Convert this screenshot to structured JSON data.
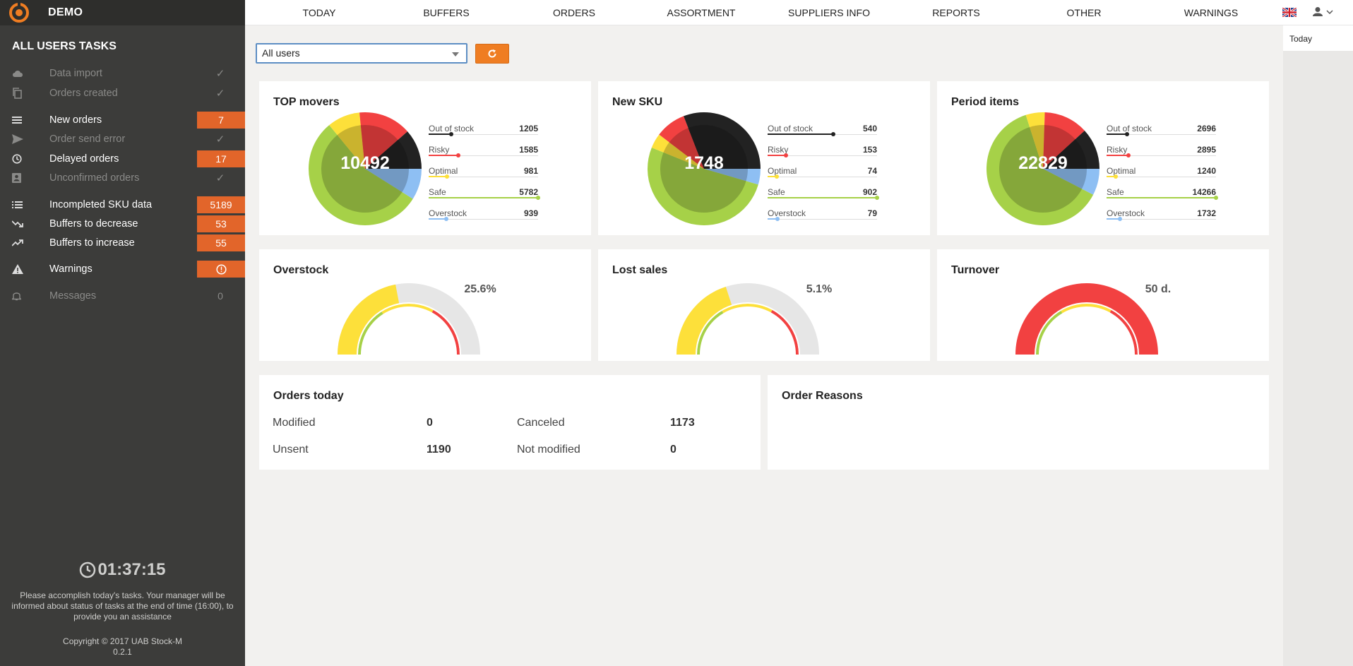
{
  "app": {
    "name": "DEMO"
  },
  "nav": {
    "items": [
      "TODAY",
      "BUFFERS",
      "ORDERS",
      "ASSORTMENT",
      "SUPPLIERS INFO",
      "REPORTS",
      "OTHER",
      "WARNINGS"
    ]
  },
  "sidebar": {
    "title": "ALL USERS TASKS",
    "tasks": [
      {
        "label": "Data import",
        "icon": "cloud-upload-icon",
        "status": "done"
      },
      {
        "label": "Orders created",
        "icon": "copy-icon",
        "status": "done"
      },
      {
        "label": "New orders",
        "icon": "list-icon",
        "count": "7"
      },
      {
        "label": "Order send error",
        "icon": "send-icon",
        "status": "done"
      },
      {
        "label": "Delayed orders",
        "icon": "clock-icon",
        "count": "17"
      },
      {
        "label": "Unconfirmed orders",
        "icon": "contact-icon",
        "status": "done"
      },
      {
        "label": "Incompleted SKU data",
        "icon": "bullet-list-icon",
        "count": "5189"
      },
      {
        "label": "Buffers to decrease",
        "icon": "trend-down-icon",
        "count": "53"
      },
      {
        "label": "Buffers to increase",
        "icon": "trend-up-icon",
        "count": "55"
      },
      {
        "label": "Warnings",
        "icon": "warning-icon",
        "count": "!"
      },
      {
        "label": "Messages",
        "icon": "bell-icon",
        "count": "0"
      }
    ],
    "timer": "01:37:15",
    "notice": "Please accomplish today's tasks. Your manager will be informed about status of tasks at the end of time (16:00), to provide you an assistance",
    "copyright": "Copyright © 2017 UAB Stock-M",
    "version": "0.2.1"
  },
  "today_panel": {
    "label": "Today"
  },
  "filter": {
    "user_select": "All users"
  },
  "colors": {
    "black": "#222222",
    "red": "#f24141",
    "yellow": "#fde03a",
    "green": "#a6d148",
    "blue": "#8ebff3",
    "accent": "#ef7d22",
    "badge": "#e2652a"
  },
  "donut_cards": [
    {
      "title": "TOP movers",
      "total": "10492",
      "legend": [
        {
          "name": "Out of stock",
          "value": "1205"
        },
        {
          "name": "Risky",
          "value": "1585"
        },
        {
          "name": "Optimal",
          "value": "981"
        },
        {
          "name": "Safe",
          "value": "5782"
        },
        {
          "name": "Overstock",
          "value": "939"
        }
      ]
    },
    {
      "title": "New SKU",
      "total": "1748",
      "legend": [
        {
          "name": "Out of stock",
          "value": "540"
        },
        {
          "name": "Risky",
          "value": "153"
        },
        {
          "name": "Optimal",
          "value": "74"
        },
        {
          "name": "Safe",
          "value": "902"
        },
        {
          "name": "Overstock",
          "value": "79"
        }
      ]
    },
    {
      "title": "Period items",
      "total": "22829",
      "legend": [
        {
          "name": "Out of stock",
          "value": "2696"
        },
        {
          "name": "Risky",
          "value": "2895"
        },
        {
          "name": "Optimal",
          "value": "1240"
        },
        {
          "name": "Safe",
          "value": "14266"
        },
        {
          "name": "Overstock",
          "value": "1732"
        }
      ]
    }
  ],
  "gauge_cards": [
    {
      "title": "Overstock",
      "value": "25.6%",
      "outer": {
        "yellow": 0.44,
        "green": 0,
        "red": 0
      },
      "inner": {
        "green": 0.32,
        "yellow": 0.34,
        "red": 0.34
      }
    },
    {
      "title": "Lost sales",
      "value": "5.1%",
      "outer": {
        "yellow": 0.4,
        "green": 0,
        "red": 0
      },
      "inner": {
        "green": 0.33,
        "yellow": 0.33,
        "red": 0.34
      }
    },
    {
      "title": "Turnover",
      "value": "50 d.",
      "outer": {
        "red": 1.0
      },
      "inner": {
        "green": 0.33,
        "yellow": 0.33,
        "red": 0.34
      }
    }
  ],
  "orders_today": {
    "title": "Orders today",
    "modified_label": "Modified",
    "modified": "0",
    "canceled_label": "Canceled",
    "canceled": "1173",
    "unsent_label": "Unsent",
    "unsent": "1190",
    "not_modified_label": "Not modified",
    "not_modified": "0"
  },
  "order_reasons": {
    "title": "Order Reasons"
  }
}
